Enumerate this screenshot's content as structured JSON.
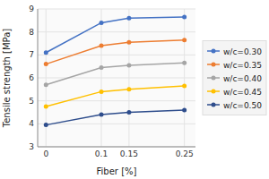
{
  "chart_data": {
    "type": "line",
    "xlabel": "Fiber [%]",
    "ylabel": "Tensile strength [MPa]",
    "x": [
      0,
      0.1,
      0.15,
      0.25
    ],
    "series": [
      {
        "name": "w/c=0.30",
        "color": "#4472C4",
        "marker": "circle",
        "values": [
          7.1,
          8.4,
          8.6,
          8.65
        ]
      },
      {
        "name": "w/c=0.35",
        "color": "#ED7D31",
        "marker": "circle",
        "values": [
          6.6,
          7.4,
          7.55,
          7.65
        ]
      },
      {
        "name": "w/c=0.40",
        "color": "#A5A5A5",
        "marker": "circle",
        "values": [
          5.7,
          6.45,
          6.55,
          6.65
        ]
      },
      {
        "name": "w/c=0.45",
        "color": "#FFC000",
        "marker": "circle",
        "values": [
          4.75,
          5.4,
          5.5,
          5.65
        ]
      },
      {
        "name": "w/c=0.50",
        "color": "#2E4D8C",
        "marker": "circle",
        "values": [
          3.95,
          4.4,
          4.5,
          4.6
        ]
      }
    ],
    "xlim": [
      -0.015,
      0.27
    ],
    "xticks": [
      0,
      0.1,
      0.15,
      0.25
    ],
    "ylim": [
      3,
      9
    ],
    "yticks": [
      3,
      4,
      5,
      6,
      7,
      8,
      9
    ],
    "grid": true,
    "legend": "right"
  }
}
